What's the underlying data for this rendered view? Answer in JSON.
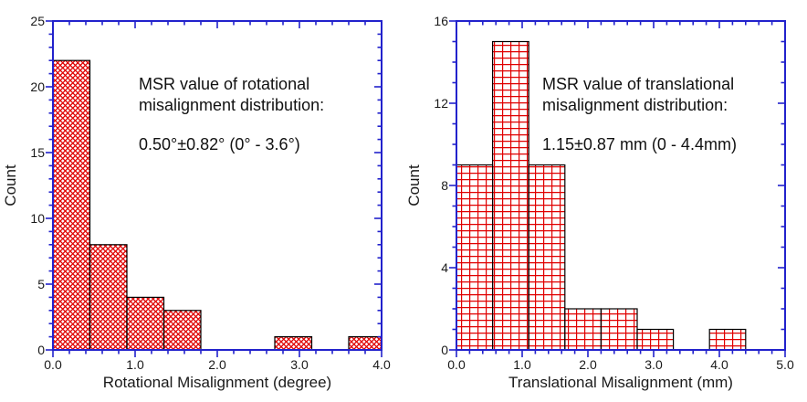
{
  "figure": {
    "background": "#ffffff"
  },
  "colors": {
    "axis": "#2222cc",
    "hatch": "#e00000",
    "bar_border": "#000000",
    "text": "#1a1a1a",
    "annotation_text": "#111111"
  },
  "chart_data": [
    {
      "type": "bar",
      "subtype": "histogram",
      "ylabel": "Count",
      "xlabel": "Rotational Misalignment (degree)",
      "annotation": {
        "lines": [
          "MSR value of rotational",
          "misalignment distribution:"
        ],
        "stats": "0.50°±0.82° (0° - 3.6°)"
      },
      "xlim": [
        0.0,
        4.0
      ],
      "ylim": [
        0,
        25
      ],
      "x_major_values": [
        0.0,
        1.0,
        2.0,
        3.0,
        4.0
      ],
      "x_major_labels": [
        "0.0",
        "1.0",
        "2.0",
        "3.0",
        "4.0"
      ],
      "x_minor_step": 0.2,
      "y_major_values": [
        0,
        5,
        10,
        15,
        20,
        25
      ],
      "y_major_labels": [
        "0",
        "5",
        "10",
        "15",
        "20",
        "25"
      ],
      "y_minor_step": 1,
      "bin_width": 0.45,
      "bins": [
        [
          0.0,
          0.45,
          22
        ],
        [
          0.45,
          0.9,
          8
        ],
        [
          0.9,
          1.35,
          4
        ],
        [
          1.35,
          1.8,
          3
        ],
        [
          2.7,
          3.15,
          1
        ],
        [
          3.6,
          4.05,
          1
        ]
      ],
      "hatch_style": "diagonal-crosshatch",
      "grid": "off",
      "legend": "none"
    },
    {
      "type": "bar",
      "subtype": "histogram",
      "ylabel": "Count",
      "xlabel": "Translational Misalignment (mm)",
      "annotation": {
        "lines": [
          "MSR value of translational",
          "misalignment distribution:"
        ],
        "stats": "1.15±0.87 mm (0 - 4.4mm)"
      },
      "xlim": [
        0.0,
        5.0
      ],
      "ylim": [
        0,
        16
      ],
      "x_major_values": [
        0.0,
        1.0,
        2.0,
        3.0,
        4.0,
        5.0
      ],
      "x_major_labels": [
        "0.0",
        "1.0",
        "2.0",
        "3.0",
        "4.0",
        "5.0"
      ],
      "x_minor_step": 0.2,
      "y_major_values": [
        0,
        4,
        8,
        12,
        16
      ],
      "y_major_labels": [
        "0",
        "4",
        "8",
        "12",
        "16"
      ],
      "y_minor_step": 1,
      "bin_width": 0.55,
      "bins": [
        [
          0.0,
          0.55,
          9
        ],
        [
          0.55,
          1.1,
          15
        ],
        [
          1.1,
          1.65,
          9
        ],
        [
          1.65,
          2.2,
          2
        ],
        [
          2.2,
          2.75,
          2
        ],
        [
          2.75,
          3.3,
          1
        ],
        [
          3.85,
          4.4,
          1
        ]
      ],
      "hatch_style": "grid",
      "grid": "off",
      "legend": "none"
    }
  ]
}
